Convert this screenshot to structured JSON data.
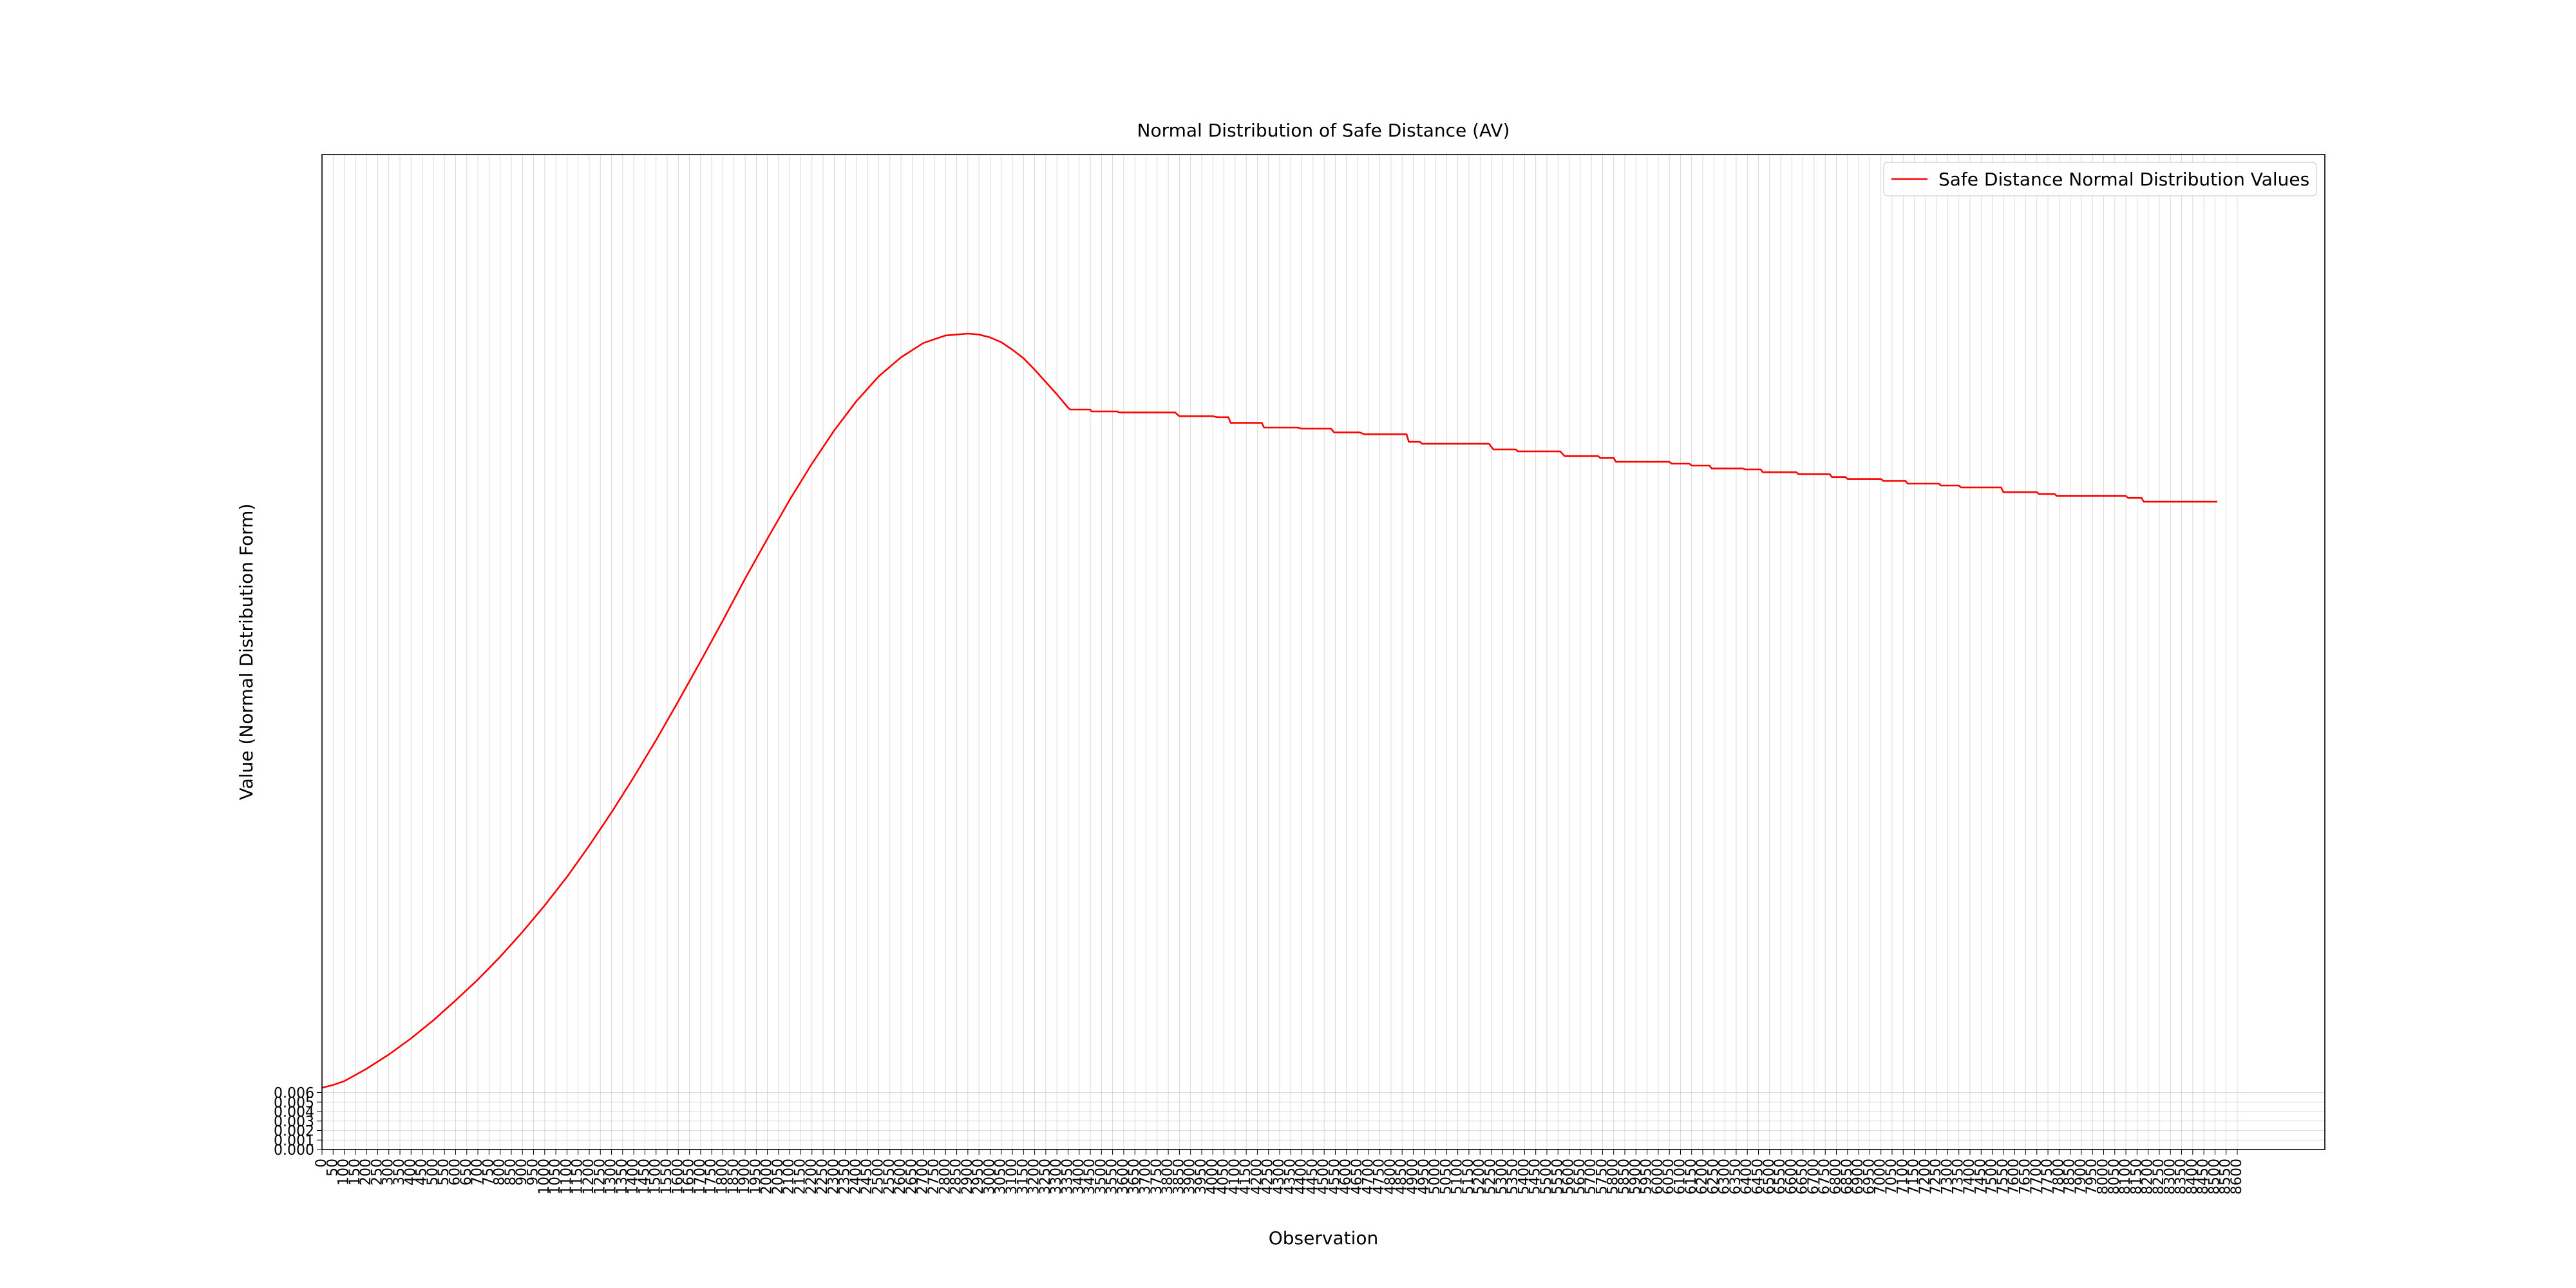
{
  "chart_data": {
    "type": "line",
    "title": "Normal Distribution of Safe Distance (AV)",
    "xlabel": "Observation",
    "ylabel": "Value (Normal Distribution Form)",
    "legend": {
      "position": "top-right",
      "entries": [
        "Safe Distance Normal Distribution Values"
      ]
    },
    "grid": true,
    "xlim": [
      0,
      8600
    ],
    "ylim": [
      0,
      0.1
    ],
    "x_ticks": {
      "start": 0,
      "end": 8600,
      "step": 50
    },
    "y_ticks": [
      "0.000",
      "0.001",
      "0.002",
      "0.003",
      "0.004",
      "0.005",
      "0.006"
    ],
    "series": [
      {
        "name": "Safe Distance Normal Distribution Values",
        "color": "#ff0000",
        "x": [
          0,
          50,
          100,
          200,
          300,
          400,
          500,
          600,
          700,
          800,
          900,
          1000,
          1100,
          1200,
          1300,
          1400,
          1500,
          1600,
          1700,
          1800,
          1900,
          2000,
          2100,
          2200,
          2300,
          2400,
          2500,
          2600,
          2700,
          2800,
          2900,
          2950,
          3000,
          3050,
          3100,
          3150,
          3200,
          3250,
          3300,
          3350,
          3360,
          3450,
          3455,
          3570,
          3580,
          3830,
          3850,
          4000,
          4020,
          4070,
          4080,
          4220,
          4230,
          4380,
          4400,
          4530,
          4545,
          4660,
          4680,
          4870,
          4880,
          4930,
          4940,
          5240,
          5260,
          5360,
          5370,
          5560,
          5580,
          5730,
          5740,
          5800,
          5810,
          6050,
          6060,
          6140,
          6150,
          6230,
          6240,
          6380,
          6390,
          6460,
          6470,
          6620,
          6630,
          6770,
          6780,
          6840,
          6850,
          7000,
          7010,
          7110,
          7120,
          7260,
          7270,
          7350,
          7360,
          7540,
          7550,
          7700,
          7710,
          7780,
          7790,
          8100,
          8110,
          8170,
          8180,
          8510
        ],
        "y": [
          0.0065,
          0.0068,
          0.0072,
          0.0085,
          0.01,
          0.0117,
          0.0136,
          0.0157,
          0.0179,
          0.0203,
          0.0229,
          0.0257,
          0.0287,
          0.032,
          0.0355,
          0.0392,
          0.0431,
          0.0472,
          0.0514,
          0.0557,
          0.0601,
          0.0643,
          0.0684,
          0.0722,
          0.0757,
          0.0788,
          0.0814,
          0.0834,
          0.0849,
          0.0857,
          0.0859,
          0.0858,
          0.0855,
          0.085,
          0.0842,
          0.0833,
          0.0821,
          0.0808,
          0.0795,
          0.0781,
          0.0779,
          0.0779,
          0.0777,
          0.0777,
          0.0776,
          0.0776,
          0.0772,
          0.0772,
          0.0771,
          0.0771,
          0.0765,
          0.0765,
          0.076,
          0.076,
          0.0759,
          0.0759,
          0.0755,
          0.0755,
          0.0753,
          0.0753,
          0.0745,
          0.0745,
          0.0743,
          0.0743,
          0.0737,
          0.0737,
          0.0735,
          0.0735,
          0.073,
          0.073,
          0.0728,
          0.0728,
          0.0724,
          0.0724,
          0.0722,
          0.0722,
          0.072,
          0.072,
          0.0717,
          0.0717,
          0.0716,
          0.0716,
          0.0713,
          0.0713,
          0.0711,
          0.0711,
          0.0708,
          0.0708,
          0.0706,
          0.0706,
          0.0704,
          0.0704,
          0.0701,
          0.0701,
          0.0699,
          0.0699,
          0.0697,
          0.0697,
          0.0692,
          0.0692,
          0.069,
          0.069,
          0.0688,
          0.0688,
          0.0686,
          0.0686,
          0.0682,
          0.0682
        ]
      }
    ]
  }
}
